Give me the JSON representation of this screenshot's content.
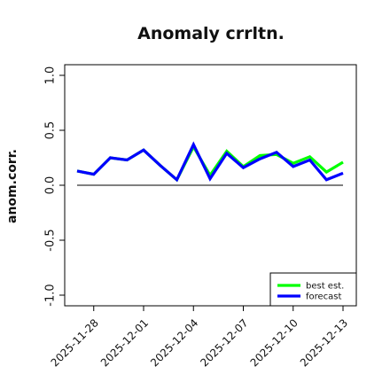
{
  "chart_data": {
    "type": "line",
    "title": "Anomaly crrltn.",
    "ylabel": "anom.corr.",
    "xlabel": "",
    "ylim": [
      -1.0,
      1.0
    ],
    "yticks": [
      -1.0,
      -0.5,
      0.0,
      0.5,
      1.0
    ],
    "ytick_labels": [
      "-1.0",
      "-0.5",
      "0.0",
      "0.5",
      "1.0"
    ],
    "x": [
      "2025-11-27",
      "2025-11-28",
      "2025-11-29",
      "2025-11-30",
      "2025-12-01",
      "2025-12-02",
      "2025-12-03",
      "2025-12-04",
      "2025-12-05",
      "2025-12-06",
      "2025-12-07",
      "2025-12-08",
      "2025-12-09",
      "2025-12-10",
      "2025-12-11",
      "2025-12-12",
      "2025-12-13"
    ],
    "xtick_labels": [
      "2025-11-28",
      "2025-12-01",
      "2025-12-04",
      "2025-12-07",
      "2025-12-10",
      "2025-12-13"
    ],
    "highlight_tick": "2025-12-04",
    "highlight_color": "#228b22",
    "reference_line": 0.0,
    "grid": false,
    "legend_position": "bottom-right",
    "series": [
      {
        "name": "best est.",
        "color": "#00ff00",
        "values": [
          0.13,
          0.1,
          0.25,
          0.23,
          0.32,
          0.18,
          0.05,
          0.35,
          0.09,
          0.31,
          0.17,
          0.27,
          0.28,
          0.2,
          0.26,
          0.12,
          0.21
        ]
      },
      {
        "name": "forecast",
        "color": "#0000ff",
        "values": [
          0.13,
          0.1,
          0.25,
          0.23,
          0.32,
          0.18,
          0.05,
          0.37,
          0.06,
          0.29,
          0.16,
          0.24,
          0.3,
          0.17,
          0.23,
          0.05,
          0.11
        ]
      }
    ]
  }
}
